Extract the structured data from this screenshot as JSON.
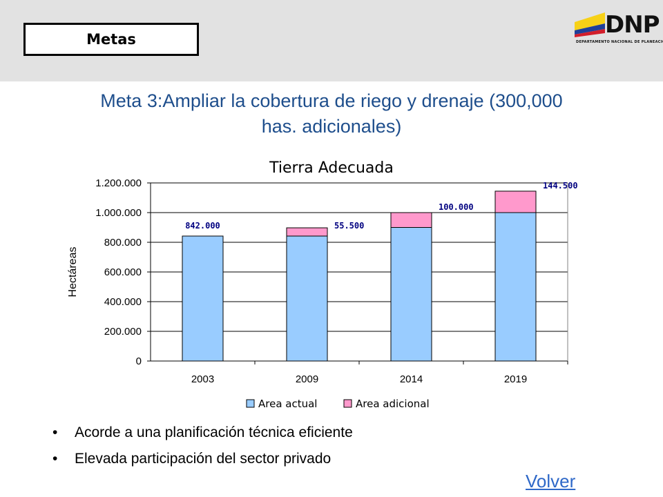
{
  "header": {
    "tag": "Metas",
    "logo": {
      "text": "DNP",
      "subtitle": "DEPARTAMENTO NACIONAL DE PLANEACION",
      "colors": [
        "#f7d117",
        "#1f3f99",
        "#d21e2b"
      ]
    }
  },
  "slide": {
    "title_line1": "Meta 3:Ampliar la cobertura de riego y drenaje (300,000",
    "title_line2": "has. adicionales)"
  },
  "chart_data": {
    "type": "bar",
    "stacked": true,
    "title": "Tierra Adecuada",
    "xlabel": "",
    "ylabel": "Hectáreas",
    "categories": [
      "2003",
      "2009",
      "2014",
      "2019"
    ],
    "series": [
      {
        "name": "Area actual",
        "color": "#99ccff",
        "values": [
          842000,
          842000,
          900000,
          1000000
        ]
      },
      {
        "name": "Area adicional",
        "color": "#ff99cc",
        "values": [
          0,
          55500,
          100000,
          144500
        ]
      }
    ],
    "data_labels": [
      "842.000",
      "55.500",
      "100.000",
      "144.500"
    ],
    "ylim": [
      0,
      1200000
    ],
    "yticks": [
      0,
      200000,
      400000,
      600000,
      800000,
      1000000,
      1200000
    ],
    "ytick_labels": [
      "0",
      "200.000",
      "400.000",
      "600.000",
      "800.000",
      "1.000.000",
      "1.200.000"
    ],
    "grid": true,
    "legend_position": "bottom"
  },
  "bullets": [
    "Acorde a una planificación técnica eficiente",
    "Elevada participación del sector privado"
  ],
  "bullet_symbol": "•",
  "link": {
    "label": "Volver"
  }
}
